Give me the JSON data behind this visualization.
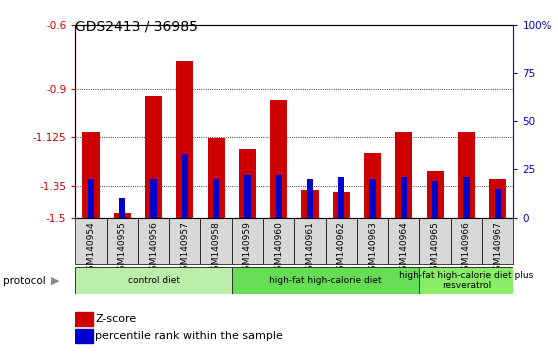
{
  "title": "GDS2413 / 36985",
  "samples": [
    "GSM140954",
    "GSM140955",
    "GSM140956",
    "GSM140957",
    "GSM140958",
    "GSM140959",
    "GSM140960",
    "GSM140961",
    "GSM140962",
    "GSM140963",
    "GSM140964",
    "GSM140965",
    "GSM140966",
    "GSM140967"
  ],
  "z_scores": [
    -1.1,
    -1.48,
    -0.93,
    -0.77,
    -1.13,
    -1.18,
    -0.95,
    -1.37,
    -1.38,
    -1.2,
    -1.1,
    -1.28,
    -1.1,
    -1.32
  ],
  "percentile_ranks": [
    20,
    10,
    20,
    33,
    20,
    22,
    22,
    20,
    21,
    20,
    21,
    19,
    21,
    15
  ],
  "ylim_left": [
    -1.5,
    -0.6
  ],
  "ylim_right": [
    0,
    100
  ],
  "yticks_left": [
    -1.5,
    -1.35,
    -1.125,
    -0.9,
    -0.6
  ],
  "yticks_right": [
    0,
    25,
    50,
    75,
    100
  ],
  "ytick_labels_left": [
    "-1.5",
    "-1.35",
    "-1.125",
    "-0.9",
    "-0.6"
  ],
  "ytick_labels_right": [
    "0",
    "25",
    "50",
    "75",
    "100%"
  ],
  "groups": [
    {
      "label": "control diet",
      "start": 0,
      "end": 5,
      "color": "#bbeeaa"
    },
    {
      "label": "high-fat high-calorie diet",
      "start": 5,
      "end": 11,
      "color": "#66dd55"
    },
    {
      "label": "high-fat high-calorie diet plus\nresveratrol",
      "start": 11,
      "end": 14,
      "color": "#88ee66"
    }
  ],
  "bar_color_red": "#cc0000",
  "bar_color_blue": "#0000cc",
  "protocol_label": "protocol",
  "legend": [
    "Z-score",
    "percentile rank within the sample"
  ],
  "bg_color": "#ffffff",
  "plot_bg_color": "#ffffff",
  "tick_label_color_left": "#cc0000",
  "tick_label_color_right": "#0000cc",
  "xticklabel_bg": "#d8d8d8",
  "spine_color": "#000000"
}
